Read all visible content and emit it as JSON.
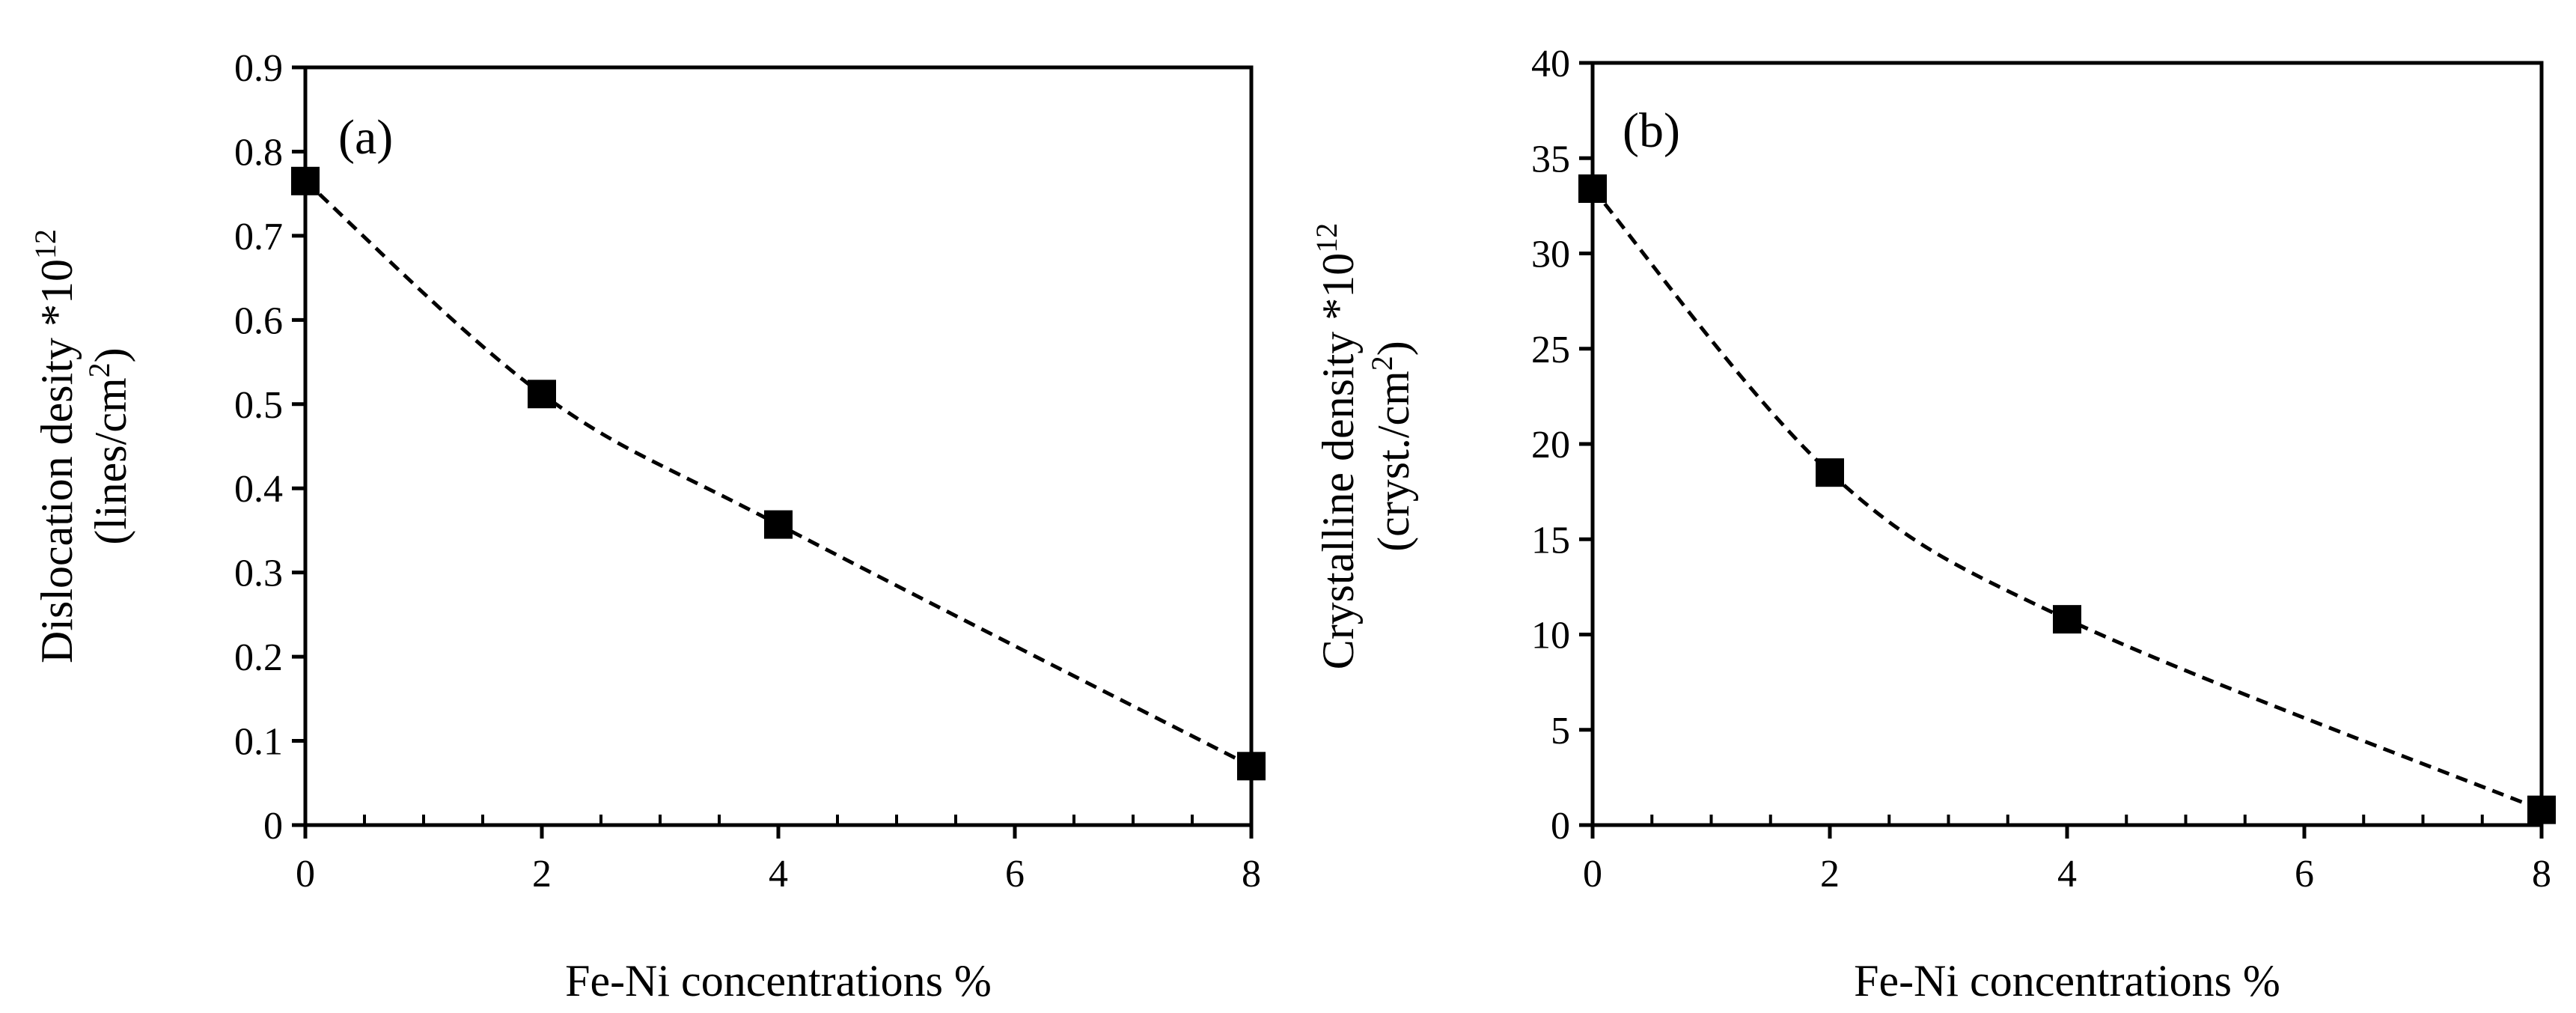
{
  "chart_data": [
    {
      "type": "line",
      "panel_label": "(a)",
      "x": [
        0,
        2,
        4,
        8
      ],
      "xticks": [
        0,
        2,
        4,
        6,
        8
      ],
      "xlim": [
        0,
        8
      ],
      "xlabel": "Fe-Ni concentrations %",
      "series": [
        {
          "values": [
            0.765,
            0.512,
            0.357,
            0.07
          ],
          "marker": "square",
          "line_style": "dashed",
          "color": "#000000"
        }
      ],
      "yticks": [
        0,
        0.1,
        0.2,
        0.3,
        0.4,
        0.5,
        0.6,
        0.7,
        0.8,
        0.9
      ],
      "ytick_labels": [
        "0",
        "0.1",
        "0.2",
        "0.3",
        "0.4",
        "0.5",
        "0.6",
        "0.7",
        "0.8",
        "0.9"
      ],
      "ylim": [
        0,
        0.9
      ],
      "ylabel_line1": "Dislocation desity *10",
      "ylabel_line1_sup": "12",
      "ylabel_line2": "(lines/cm",
      "ylabel_line2_sup": "2",
      "ylabel_line2_end": ")",
      "grid": false
    },
    {
      "type": "line",
      "panel_label": "(b)",
      "x": [
        0,
        2,
        4,
        8
      ],
      "xticks": [
        0,
        2,
        4,
        6,
        8
      ],
      "xlim": [
        0,
        8
      ],
      "xlabel": "Fe-Ni concentrations %",
      "series": [
        {
          "values": [
            33.4,
            18.5,
            10.8,
            0.8
          ],
          "marker": "square",
          "line_style": "dashed",
          "color": "#000000"
        }
      ],
      "yticks": [
        0,
        5,
        10,
        15,
        20,
        25,
        30,
        35,
        40
      ],
      "ytick_labels": [
        "0",
        "5",
        "10",
        "15",
        "20",
        "25",
        "30",
        "35",
        "40"
      ],
      "ylim": [
        0,
        40
      ],
      "ylabel_line1": "Crystalline density *10",
      "ylabel_line1_sup": "12",
      "ylabel_line2": "(cryst./cm",
      "ylabel_line2_sup": "2",
      "ylabel_line2_end": ")",
      "grid": false
    }
  ]
}
